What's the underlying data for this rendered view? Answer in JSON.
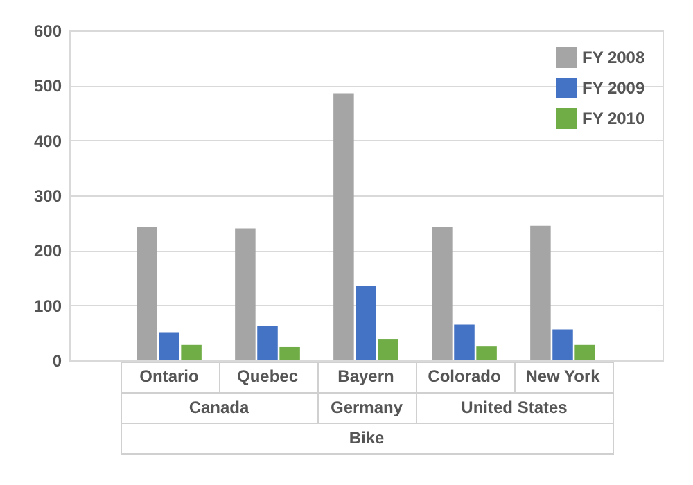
{
  "chart_data": {
    "type": "bar",
    "categories": [
      "Ontario",
      "Quebec",
      "Bayern",
      "Colorado",
      "New York"
    ],
    "series": [
      {
        "name": "FY 2008",
        "color": "#a5a5a5",
        "values": [
          243,
          240,
          486,
          243,
          245
        ]
      },
      {
        "name": "FY 2009",
        "color": "#4472c4",
        "values": [
          51,
          63,
          135,
          65,
          56
        ]
      },
      {
        "name": "FY 2010",
        "color": "#70ad47",
        "values": [
          28,
          24,
          39,
          25,
          28
        ]
      }
    ],
    "annotations": [
      "Canada",
      "Germany",
      "United States",
      "Bike"
    ],
    "ylim": [
      0,
      600
    ],
    "yticks": [
      0,
      100,
      200,
      300,
      400,
      500,
      600
    ],
    "grid": "y",
    "legend": "top right"
  }
}
